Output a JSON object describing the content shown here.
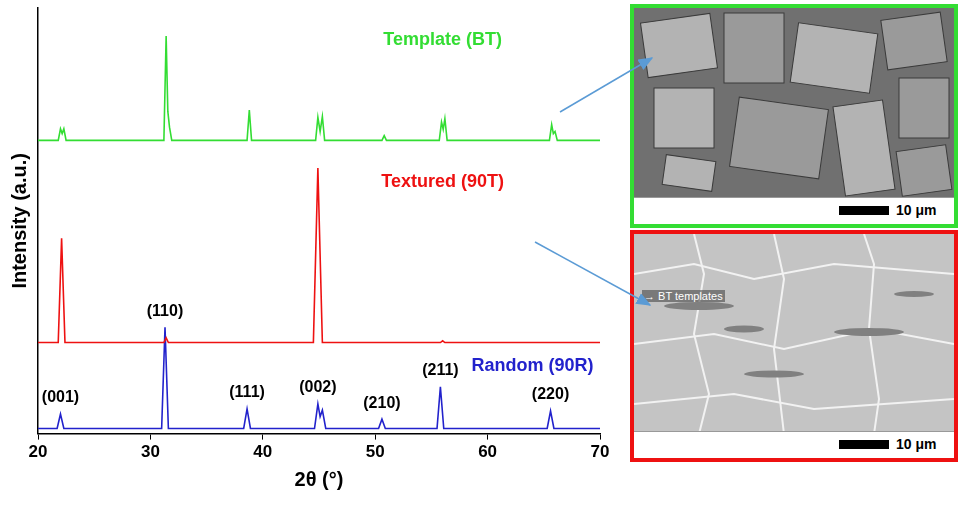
{
  "chart_data": {
    "type": "line",
    "x_label": "2θ (°)",
    "y_label": "Intensity (a.u.)",
    "xlim": [
      20,
      70
    ],
    "xticks": [
      20,
      30,
      40,
      50,
      60,
      70
    ],
    "ylim": [
      0,
      100
    ],
    "tick_labels": "x",
    "grid": false,
    "series": [
      {
        "name": "Template (BT)",
        "color": "#33dd33",
        "x": [
          20,
          21.8,
          22.0,
          22.15,
          22.3,
          22.5,
          31.2,
          31.4,
          31.55,
          31.7,
          31.9,
          38.6,
          38.8,
          39.0,
          44.7,
          44.9,
          45.1,
          45.3,
          45.5,
          50.6,
          50.8,
          51.0,
          55.7,
          55.9,
          56.05,
          56.2,
          56.4,
          65.5,
          65.7,
          65.85,
          66.0,
          66.2,
          70
        ],
        "values": [
          68.9,
          68.9,
          71.6,
          70.5,
          71.6,
          68.9,
          68.9,
          93.4,
          75.7,
          72,
          68.9,
          68.9,
          76,
          68.9,
          68.9,
          74.3,
          71,
          74.5,
          68.9,
          68.9,
          70,
          68.9,
          68.9,
          73.2,
          71.5,
          74,
          68.9,
          68.9,
          72.6,
          70.5,
          71,
          68.9,
          68.9
        ]
      },
      {
        "name": "Textured (90T)",
        "color": "#ee1111",
        "x": [
          20,
          21.8,
          22.1,
          22.4,
          31.2,
          31.4,
          31.6,
          44.5,
          44.9,
          45.3,
          55.8,
          56.0,
          56.2,
          70
        ],
        "values": [
          21.4,
          21.4,
          45.9,
          21.4,
          21.4,
          22.5,
          21.4,
          21.4,
          62.4,
          21.4,
          21.4,
          21.8,
          21.4,
          21.4
        ]
      },
      {
        "name": "Random (90R)",
        "color": "#2222cc",
        "x": [
          20,
          21.7,
          22.0,
          22.3,
          31.0,
          31.3,
          31.6,
          38.3,
          38.6,
          38.9,
          44.6,
          44.9,
          45.1,
          45.3,
          45.6,
          50.3,
          50.6,
          50.9,
          55.5,
          55.8,
          56.1,
          65.3,
          65.6,
          65.9,
          70
        ],
        "values": [
          1.2,
          1.2,
          4.6,
          1.2,
          1.2,
          25,
          1.2,
          1.2,
          5.8,
          1.2,
          1.2,
          7,
          4,
          5.5,
          1.2,
          1.2,
          3.4,
          1.2,
          1.2,
          11,
          1.2,
          1.2,
          5.3,
          1.2,
          1.2
        ]
      }
    ],
    "annotations": [
      {
        "text": "(001)",
        "x": 22.0,
        "y": 4.6
      },
      {
        "text": "(110)",
        "x": 31.3,
        "y": 25
      },
      {
        "text": "(111)",
        "x": 38.6,
        "y": 5.8
      },
      {
        "text": "(002)",
        "x": 44.9,
        "y": 7
      },
      {
        "text": "(210)",
        "x": 50.6,
        "y": 3.4
      },
      {
        "text": "(211)",
        "x": 55.8,
        "y": 11
      },
      {
        "text": "(220)",
        "x": 65.6,
        "y": 5.3
      }
    ]
  },
  "panels": [
    {
      "color": "#33dd33",
      "scale_bar": "10 μm",
      "labels": []
    },
    {
      "color": "#ee1111",
      "scale_bar": "10 μm",
      "labels": [
        "BT templates"
      ]
    }
  ]
}
